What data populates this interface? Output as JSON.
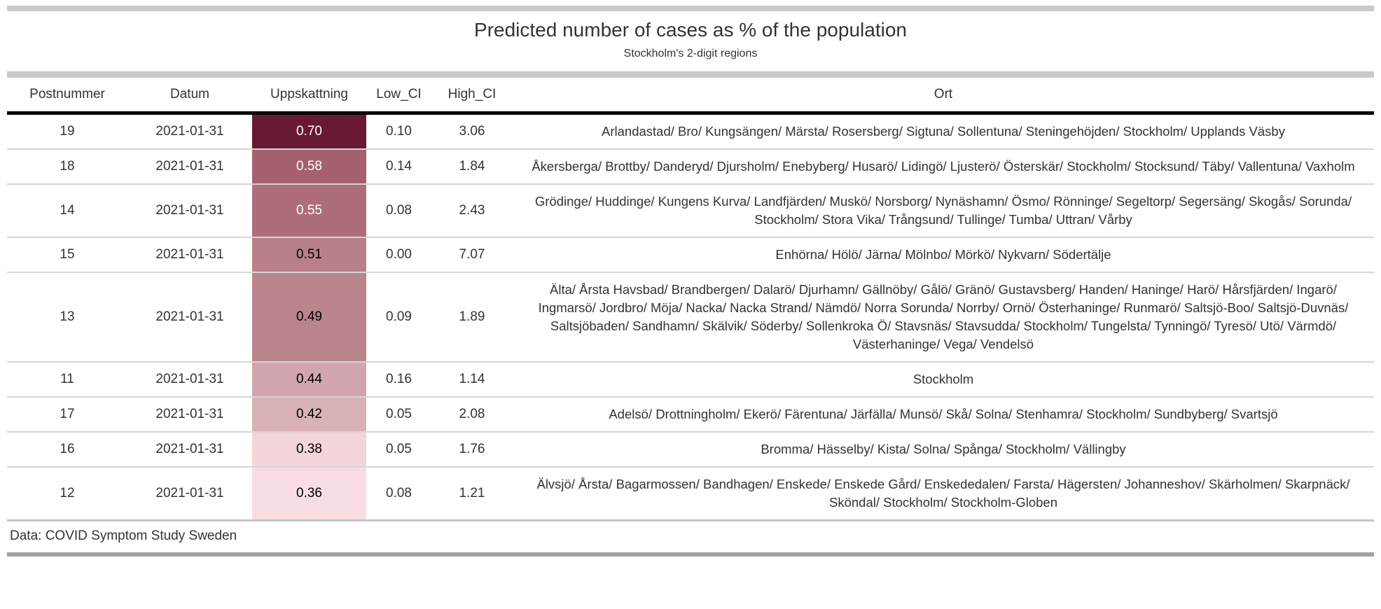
{
  "header": {
    "title": "Predicted number of cases as % of the population",
    "subtitle": "Stockholm's 2-digit regions"
  },
  "footer": {
    "source_note": "Data: COVID Symptom Study Sweden"
  },
  "table": {
    "columns": [
      "Postnummer",
      "Datum",
      "Uppskattning",
      "Low_CI",
      "High_CI",
      "Ort"
    ],
    "rows": [
      {
        "postnummer": "19",
        "datum": "2021-01-31",
        "uppskattning": "0.70",
        "low_ci": "0.10",
        "high_ci": "3.06",
        "ort": "Arlandastad/ Bro/ Kungsängen/ Märsta/ Rosersberg/ Sigtuna/ Sollentuna/ Steningehöjden/ Stockholm/ Upplands Väsby",
        "cell_bg": "#6a1932",
        "cell_fg": "#ffffff"
      },
      {
        "postnummer": "18",
        "datum": "2021-01-31",
        "uppskattning": "0.58",
        "low_ci": "0.14",
        "high_ci": "1.84",
        "ort": "Åkersberga/ Brottby/ Danderyd/ Djursholm/ Enebyberg/ Husarö/ Lidingö/ Ljusterö/ Österskär/ Stockholm/ Stocksund/ Täby/ Vallentuna/ Vaxholm",
        "cell_bg": "#a5616d",
        "cell_fg": "#ffffff"
      },
      {
        "postnummer": "14",
        "datum": "2021-01-31",
        "uppskattning": "0.55",
        "low_ci": "0.08",
        "high_ci": "2.43",
        "ort": "Grödinge/ Huddinge/ Kungens Kurva/ Landfjärden/ Muskö/ Norsborg/ Nynäshamn/ Ösmo/ Rönninge/ Segeltorp/ Segersäng/ Skogås/ Sorunda/ Stockholm/ Stora Vika/ Trångsund/ Tullinge/ Tumba/ Uttran/ Vårby",
        "cell_bg": "#ae6e79",
        "cell_fg": "#ffffff"
      },
      {
        "postnummer": "15",
        "datum": "2021-01-31",
        "uppskattning": "0.51",
        "low_ci": "0.00",
        "high_ci": "7.07",
        "ort": "Enhörna/ Hölö/ Järna/ Mölnbo/ Mörkö/ Nykvarn/ Södertälje",
        "cell_bg": "#b8808a",
        "cell_fg": "#000000"
      },
      {
        "postnummer": "13",
        "datum": "2021-01-31",
        "uppskattning": "0.49",
        "low_ci": "0.09",
        "high_ci": "1.89",
        "ort": "Älta/ Årsta Havsbad/ Brandbergen/ Dalarö/ Djurhamn/ Gällnöby/ Gålö/ Gränö/ Gustavsberg/ Handen/ Haninge/ Harö/ Hårsfjärden/ Ingarö/ Ingmarsö/ Jordbro/ Möja/ Nacka/ Nacka Strand/ Nämdö/ Norra Sorunda/ Norrby/ Ornö/ Österhaninge/ Runmarö/ Saltsjö-Boo/ Saltsjö-Duvnäs/ Saltsjöbaden/ Sandhamn/ Skälvik/ Söderby/ Sollenkroka Ö/ Stavsnäs/ Stavsudda/ Stockholm/ Tungelsta/ Tynningö/ Tyresö/ Utö/ Värmdö/ Västerhaninge/ Vega/ Vendelsö",
        "cell_bg": "#ba848d",
        "cell_fg": "#000000"
      },
      {
        "postnummer": "11",
        "datum": "2021-01-31",
        "uppskattning": "0.44",
        "low_ci": "0.16",
        "high_ci": "1.14",
        "ort": "Stockholm",
        "cell_bg": "#d2a6ae",
        "cell_fg": "#000000"
      },
      {
        "postnummer": "17",
        "datum": "2021-01-31",
        "uppskattning": "0.42",
        "low_ci": "0.05",
        "high_ci": "2.08",
        "ort": "Adelsö/ Drottningholm/ Ekerö/ Färentuna/ Järfälla/ Munsö/ Skå/ Solna/ Stenhamra/ Stockholm/ Sundbyberg/ Svartsjö",
        "cell_bg": "#d9b2b8",
        "cell_fg": "#000000"
      },
      {
        "postnummer": "16",
        "datum": "2021-01-31",
        "uppskattning": "0.38",
        "low_ci": "0.05",
        "high_ci": "1.76",
        "ort": "Bromma/ Hässelby/ Kista/ Solna/ Spånga/ Stockholm/ Vällingby",
        "cell_bg": "#f2d4d9",
        "cell_fg": "#000000"
      },
      {
        "postnummer": "12",
        "datum": "2021-01-31",
        "uppskattning": "0.36",
        "low_ci": "0.08",
        "high_ci": "1.21",
        "ort": "Älvsjö/ Årsta/ Bagarmossen/ Bandhagen/ Enskede/ Enskede Gård/ Enskededalen/ Farsta/ Hägersten/ Johanneshov/ Skärholmen/ Skarpnäck/ Sköndal/ Stockholm/ Stockholm-Globen",
        "cell_bg": "#f8dee2",
        "cell_fg": "#000000"
      }
    ]
  },
  "colors": {
    "divider_bar": "#c9c9c9",
    "bottom_bar": "#a3a3a3",
    "header_rule": "#000000",
    "row_separator": "#d6d6d6",
    "text": "#333333",
    "heat_scale_max": "#6a1932",
    "heat_scale_min": "#f8dee2"
  },
  "chart_data": {
    "type": "table",
    "title": "Predicted number of cases as % of the population",
    "subtitle": "Stockholm's 2-digit regions",
    "source_note": "Data: COVID Symptom Study Sweden",
    "columns": [
      "Postnummer",
      "Datum",
      "Uppskattning",
      "Low_CI",
      "High_CI",
      "Ort"
    ],
    "rows": [
      [
        19,
        "2021-01-31",
        0.7,
        0.1,
        3.06,
        "Arlandastad/ Bro/ Kungsängen/ Märsta/ Rosersberg/ Sigtuna/ Sollentuna/ Steningehöjden/ Stockholm/ Upplands Väsby"
      ],
      [
        18,
        "2021-01-31",
        0.58,
        0.14,
        1.84,
        "Åkersberga/ Brottby/ Danderyd/ Djursholm/ Enebyberg/ Husarö/ Lidingö/ Ljusterö/ Österskär/ Stockholm/ Stocksund/ Täby/ Vallentuna/ Vaxholm"
      ],
      [
        14,
        "2021-01-31",
        0.55,
        0.08,
        2.43,
        "Grödinge/ Huddinge/ Kungens Kurva/ Landfjärden/ Muskö/ Norsborg/ Nynäshamn/ Ösmo/ Rönninge/ Segeltorp/ Segersäng/ Skogås/ Sorunda/ Stockholm/ Stora Vika/ Trångsund/ Tullinge/ Tumba/ Uttran/ Vårby"
      ],
      [
        15,
        "2021-01-31",
        0.51,
        0.0,
        7.07,
        "Enhörna/ Hölö/ Järna/ Mölnbo/ Mörkö/ Nykvarn/ Södertälje"
      ],
      [
        13,
        "2021-01-31",
        0.49,
        0.09,
        1.89,
        "Älta/ Årsta Havsbad/ Brandbergen/ Dalarö/ Djurhamn/ Gällnöby/ Gålö/ Gränö/ Gustavsberg/ Handen/ Haninge/ Harö/ Hårsfjärden/ Ingarö/ Ingmarsö/ Jordbro/ Möja/ Nacka/ Nacka Strand/ Nämdö/ Norra Sorunda/ Norrby/ Ornö/ Österhaninge/ Runmarö/ Saltsjö-Boo/ Saltsjö-Duvnäs/ Saltsjöbaden/ Sandhamn/ Skälvik/ Söderby/ Sollenkroka Ö/ Stavsnäs/ Stavsudda/ Stockholm/ Tungelsta/ Tynningö/ Tyresö/ Utö/ Värmdö/ Västerhaninge/ Vega/ Vendelsö"
      ],
      [
        11,
        "2021-01-31",
        0.44,
        0.16,
        1.14,
        "Stockholm"
      ],
      [
        17,
        "2021-01-31",
        0.42,
        0.05,
        2.08,
        "Adelsö/ Drottningholm/ Ekerö/ Färentuna/ Järfälla/ Munsö/ Skå/ Solna/ Stenhamra/ Stockholm/ Sundbyberg/ Svartsjö"
      ],
      [
        16,
        "2021-01-31",
        0.38,
        0.05,
        1.76,
        "Bromma/ Hässelby/ Kista/ Solna/ Spånga/ Stockholm/ Vällingby"
      ],
      [
        12,
        "2021-01-31",
        0.36,
        0.08,
        1.21,
        "Älvsjö/ Årsta/ Bagarmossen/ Bandhagen/ Enskede/ Enskede Gård/ Enskededalen/ Farsta/ Hägersten/ Johanneshov/ Skärholmen/ Skarpnäck/ Sköndal/ Stockholm/ Stockholm-Globen"
      ]
    ],
    "heatmap_column": "Uppskattning",
    "legend_position": "none",
    "grid": "row-separators"
  }
}
